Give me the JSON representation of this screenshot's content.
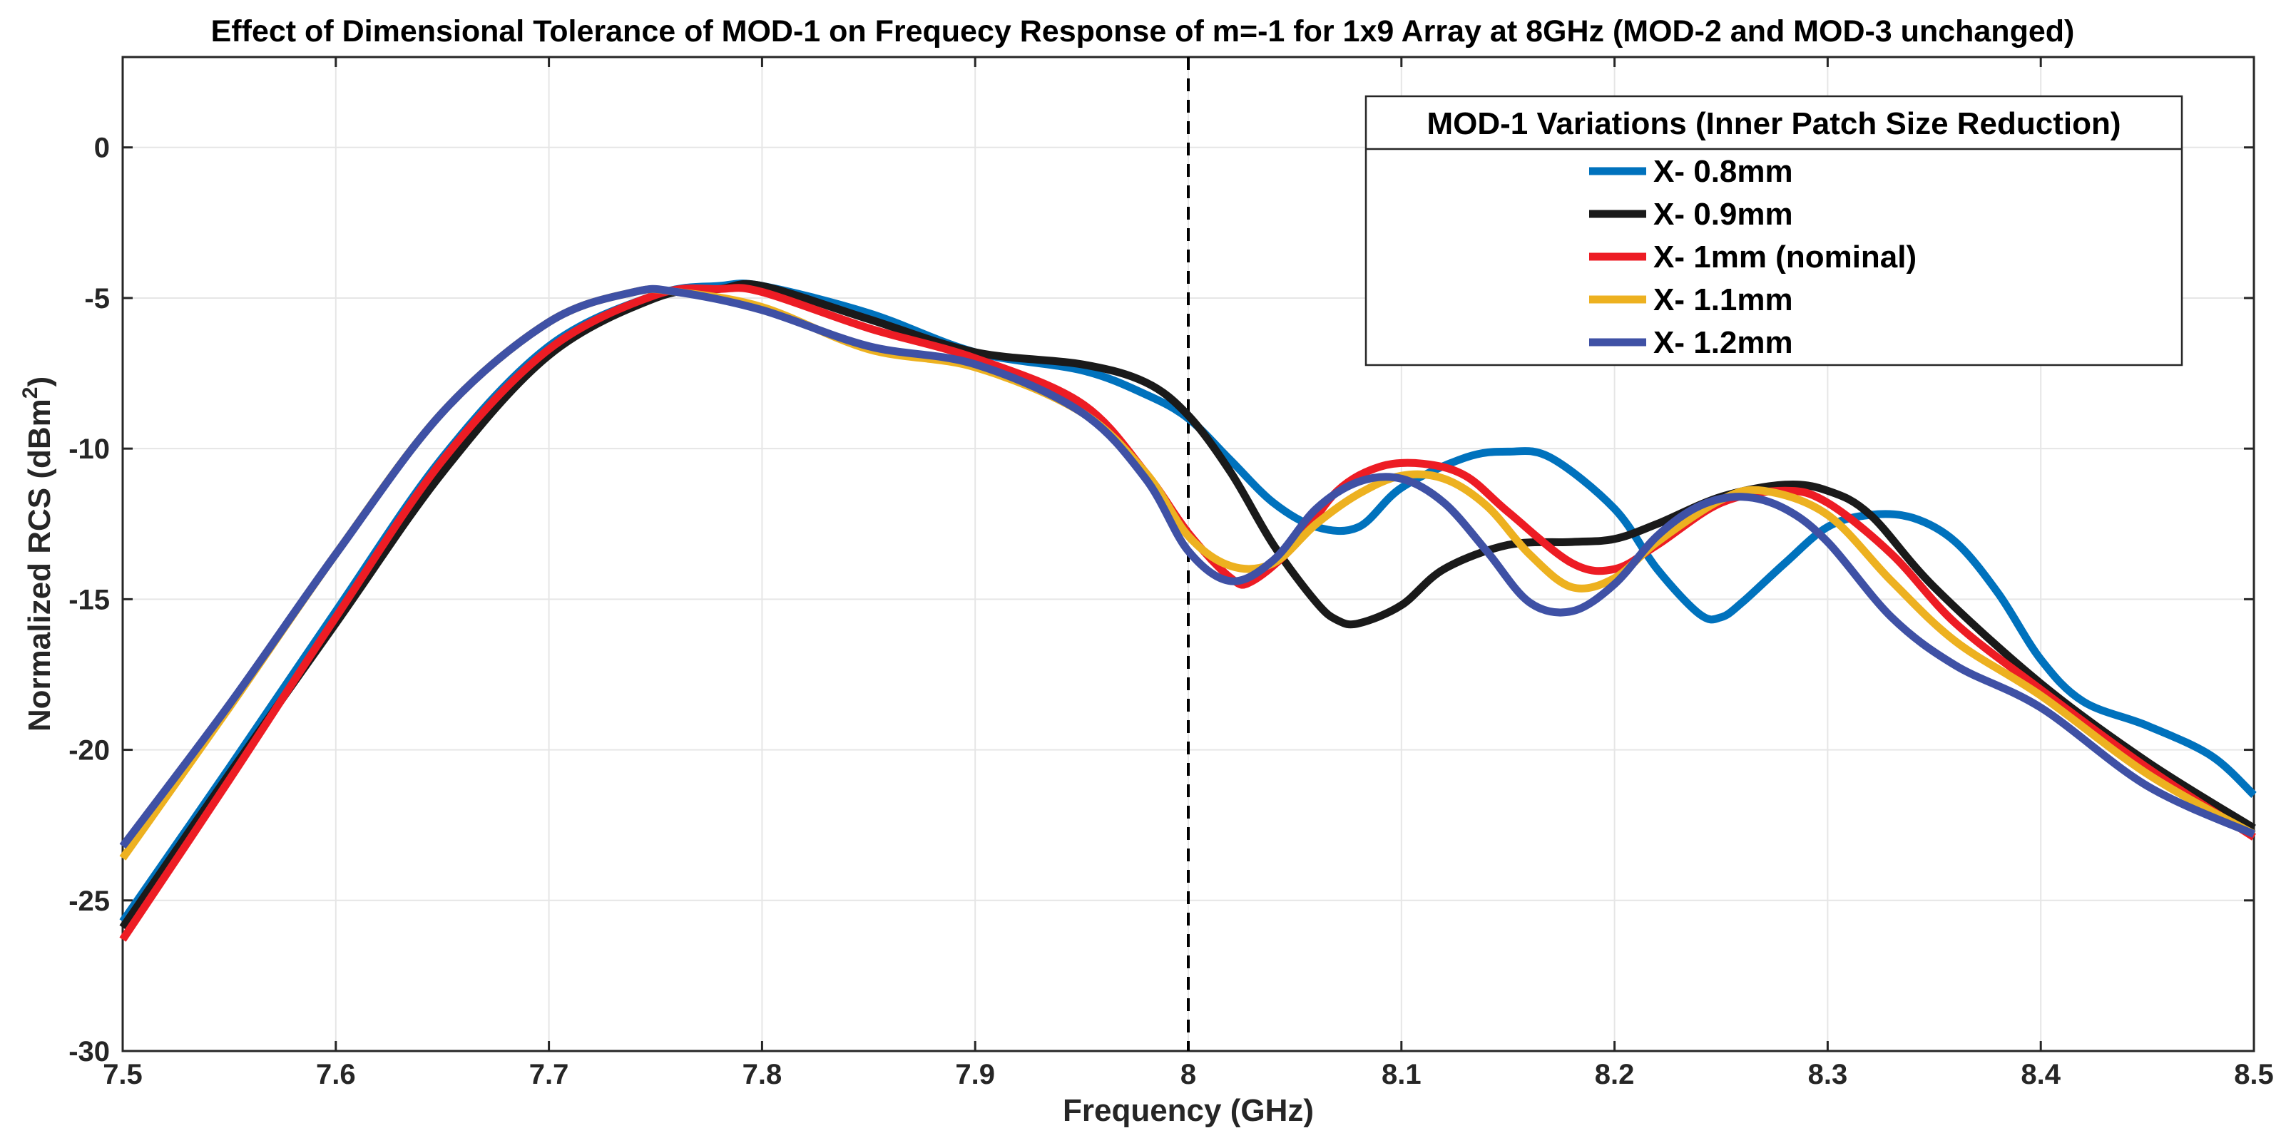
{
  "chart_data": {
    "type": "line",
    "title": "Effect of Dimensional Tolerance of MOD-1 on Frequecy Response of m=-1 for 1x9 Array at 8GHz (MOD-2 and MOD-3 unchanged)",
    "xlabel": "Frequency (GHz)",
    "ylabel_main": "Normalized RCS (dBm",
    "ylabel_sup": "2",
    "ylabel_close": ")",
    "xlim": [
      7.5,
      8.5
    ],
    "ylim": [
      -30,
      3
    ],
    "x_ticks": [
      7.5,
      7.6,
      7.7,
      7.8,
      7.9,
      8.0,
      8.1,
      8.2,
      8.3,
      8.4,
      8.5
    ],
    "x_tick_labels": [
      "7.5",
      "7.6",
      "7.7",
      "7.8",
      "7.9",
      "8",
      "8.1",
      "8.2",
      "8.3",
      "8.4",
      "8.5"
    ],
    "y_ticks": [
      0,
      -5,
      -10,
      -15,
      -20,
      -25,
      -30
    ],
    "y_tick_labels": [
      "0",
      "-5",
      "-10",
      "-15",
      "-20",
      "-25",
      "-30"
    ],
    "grid": true,
    "reference_line": {
      "x": 8.0,
      "style": "dashed",
      "color": "#000000"
    },
    "legend": {
      "title": "MOD-1 Variations (Inner Patch Size Reduction)",
      "location": "top-right"
    },
    "series": [
      {
        "name": "X- 0.8mm",
        "color": "#0072BD",
        "x": [
          7.5,
          7.55,
          7.6,
          7.65,
          7.7,
          7.75,
          7.78,
          7.8,
          7.85,
          7.9,
          7.95,
          7.98,
          8.0,
          8.02,
          8.04,
          8.06,
          8.08,
          8.1,
          8.13,
          8.15,
          8.17,
          8.2,
          8.22,
          8.24,
          8.25,
          8.26,
          8.28,
          8.3,
          8.32,
          8.34,
          8.36,
          8.38,
          8.4,
          8.42,
          8.45,
          8.48,
          8.5
        ],
        "y": [
          -25.7,
          -20.6,
          -15.4,
          -10.3,
          -6.6,
          -4.9,
          -4.6,
          -4.6,
          -5.5,
          -6.8,
          -7.4,
          -8.2,
          -9.0,
          -10.4,
          -11.8,
          -12.6,
          -12.6,
          -11.3,
          -10.3,
          -10.1,
          -10.3,
          -12.0,
          -14.0,
          -15.5,
          -15.6,
          -15.1,
          -13.8,
          -12.6,
          -12.2,
          -12.3,
          -13.1,
          -14.8,
          -17.0,
          -18.4,
          -19.2,
          -20.2,
          -21.5
        ]
      },
      {
        "name": "X- 0.9mm",
        "color": "#1A1A1A",
        "x": [
          7.5,
          7.55,
          7.6,
          7.65,
          7.7,
          7.75,
          7.78,
          7.8,
          7.85,
          7.9,
          7.95,
          7.98,
          8.0,
          8.02,
          8.04,
          8.06,
          8.07,
          8.08,
          8.1,
          8.12,
          8.15,
          8.18,
          8.2,
          8.22,
          8.25,
          8.28,
          8.3,
          8.32,
          8.35,
          8.4,
          8.45,
          8.5
        ],
        "y": [
          -25.9,
          -20.8,
          -15.8,
          -10.8,
          -6.9,
          -5.0,
          -4.7,
          -4.6,
          -5.7,
          -6.8,
          -7.2,
          -7.8,
          -8.9,
          -10.8,
          -13.2,
          -15.1,
          -15.7,
          -15.8,
          -15.2,
          -14.0,
          -13.2,
          -13.1,
          -13.0,
          -12.5,
          -11.6,
          -11.2,
          -11.4,
          -12.2,
          -14.6,
          -17.8,
          -20.4,
          -22.6
        ]
      },
      {
        "name": "X- 1mm (nominal)",
        "color": "#ED1C24",
        "x": [
          7.5,
          7.55,
          7.6,
          7.65,
          7.7,
          7.75,
          7.78,
          7.8,
          7.85,
          7.9,
          7.95,
          7.98,
          8.0,
          8.02,
          8.03,
          8.05,
          8.07,
          8.09,
          8.11,
          8.13,
          8.15,
          8.18,
          8.2,
          8.22,
          8.25,
          8.28,
          8.3,
          8.33,
          8.36,
          8.4,
          8.45,
          8.5
        ],
        "y": [
          -26.3,
          -21.0,
          -15.6,
          -10.4,
          -6.7,
          -4.9,
          -4.7,
          -4.8,
          -6.0,
          -7.0,
          -8.5,
          -10.8,
          -12.8,
          -14.3,
          -14.4,
          -13.2,
          -11.4,
          -10.6,
          -10.5,
          -10.9,
          -12.1,
          -13.8,
          -14.0,
          -13.2,
          -11.8,
          -11.4,
          -11.8,
          -13.5,
          -15.8,
          -18.0,
          -20.6,
          -22.9
        ]
      },
      {
        "name": "X- 1.1mm",
        "color": "#EDB120",
        "x": [
          7.5,
          7.55,
          7.6,
          7.65,
          7.7,
          7.74,
          7.76,
          7.8,
          7.85,
          7.9,
          7.95,
          7.98,
          8.0,
          8.02,
          8.04,
          8.06,
          8.08,
          8.1,
          8.12,
          8.14,
          8.16,
          8.18,
          8.2,
          8.22,
          8.25,
          8.27,
          8.3,
          8.33,
          8.36,
          8.4,
          8.45,
          8.5
        ],
        "y": [
          -23.6,
          -18.6,
          -13.5,
          -8.8,
          -5.8,
          -4.8,
          -4.8,
          -5.3,
          -6.7,
          -7.3,
          -8.8,
          -10.8,
          -12.9,
          -13.9,
          -13.8,
          -12.5,
          -11.5,
          -10.9,
          -11.0,
          -11.9,
          -13.5,
          -14.6,
          -14.3,
          -13.1,
          -11.7,
          -11.4,
          -12.2,
          -14.4,
          -16.4,
          -18.2,
          -20.8,
          -22.8
        ]
      },
      {
        "name": "X- 1.2mm",
        "color": "#3F51A5",
        "x": [
          7.5,
          7.55,
          7.6,
          7.65,
          7.7,
          7.74,
          7.76,
          7.8,
          7.85,
          7.9,
          7.95,
          7.98,
          8.0,
          8.02,
          8.04,
          8.06,
          8.08,
          8.1,
          8.12,
          8.14,
          8.16,
          8.18,
          8.2,
          8.22,
          8.24,
          8.26,
          8.28,
          8.3,
          8.33,
          8.36,
          8.4,
          8.45,
          8.5
        ],
        "y": [
          -23.2,
          -18.5,
          -13.5,
          -8.8,
          -5.8,
          -4.8,
          -4.8,
          -5.4,
          -6.6,
          -7.2,
          -8.8,
          -11.0,
          -13.4,
          -14.4,
          -13.7,
          -12.0,
          -11.1,
          -11.0,
          -11.8,
          -13.4,
          -15.1,
          -15.4,
          -14.5,
          -12.9,
          -11.9,
          -11.6,
          -12.0,
          -13.1,
          -15.6,
          -17.2,
          -18.6,
          -21.2,
          -22.8
        ]
      }
    ]
  }
}
